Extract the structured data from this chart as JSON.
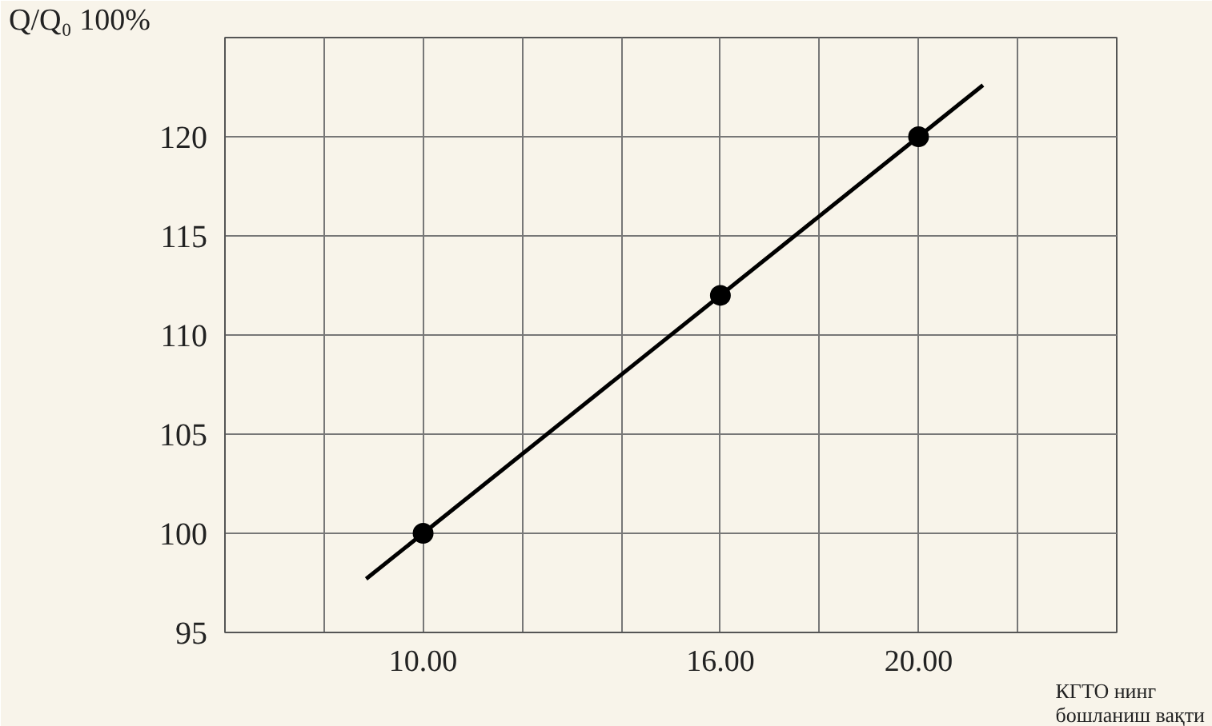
{
  "chart_data": {
    "type": "scatter",
    "xlabel": "КГТО нинг бошланиш вақти",
    "ylabel": "Q/Q₀ 100%",
    "x": [
      10,
      16,
      20
    ],
    "series": [
      {
        "color": "#000000",
        "values": [
          100,
          112,
          120
        ],
        "marker": "circle"
      },
      {
        "type": "line",
        "color": "#000000",
        "x": [
          8.85,
          21.3
        ],
        "values": [
          97.7,
          122.6
        ],
        "marker": "none"
      }
    ],
    "xlim": [
      6,
      24
    ],
    "xticks": [
      {
        "value": 6,
        "label": null
      },
      {
        "value": 8,
        "label": null
      },
      {
        "value": 10,
        "label": "10.00"
      },
      {
        "value": 12,
        "label": null
      },
      {
        "value": 14,
        "label": null
      },
      {
        "value": 16,
        "label": "16.00"
      },
      {
        "value": 18,
        "label": null
      },
      {
        "value": 20,
        "label": "20.00"
      },
      {
        "value": 22,
        "label": null
      },
      {
        "value": 24,
        "label": null
      }
    ],
    "ylim": [
      95,
      125
    ],
    "yticks": [
      95,
      100,
      105,
      110,
      115,
      120,
      {
        "value": 125,
        "label": null
      }
    ],
    "grid": true
  }
}
